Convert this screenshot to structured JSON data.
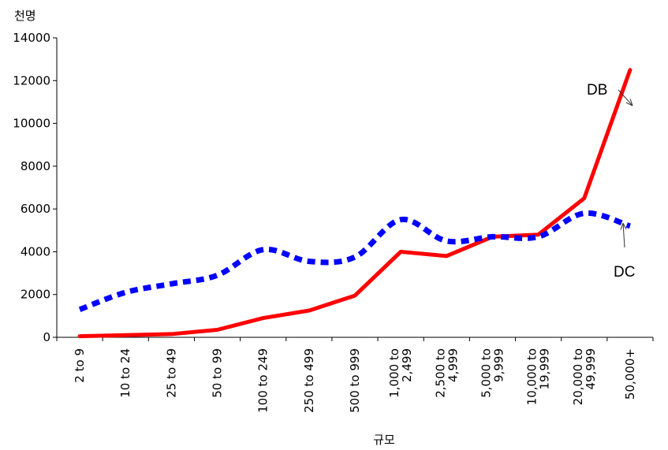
{
  "chart_data": {
    "type": "line",
    "title": "",
    "ylabel": "천명",
    "xlabel": "규모",
    "ylim": [
      0,
      14000
    ],
    "yticks": [
      "0",
      "2000",
      "4000",
      "6000",
      "8000",
      "10000",
      "12000",
      "14000"
    ],
    "grid": false,
    "categories": [
      [
        "2 to 9"
      ],
      [
        "10 to 24"
      ],
      [
        "25 to 49"
      ],
      [
        "50 to 99"
      ],
      [
        "100 to 249"
      ],
      [
        "250 to 499"
      ],
      [
        "500 to 999"
      ],
      [
        "1,000 to",
        "2,499"
      ],
      [
        "2,500 to",
        "4,999"
      ],
      [
        "5,000 to",
        "9,999"
      ],
      [
        "10,000 to",
        "19,999"
      ],
      [
        "20,000 to",
        "49,999"
      ],
      [
        "50,000+"
      ]
    ],
    "series": [
      {
        "name": "DB",
        "style": "solid",
        "color": "#ff0000",
        "values": [
          50,
          100,
          150,
          350,
          900,
          1250,
          1950,
          4000,
          3800,
          4700,
          4800,
          6500,
          12500
        ]
      },
      {
        "name": "DC",
        "style": "dotted",
        "color": "#0000ff",
        "values": [
          1300,
          2100,
          2500,
          2900,
          4100,
          3550,
          3750,
          5500,
          4500,
          4700,
          4700,
          5800,
          5200
        ]
      }
    ],
    "annotations": [
      {
        "text": "DB",
        "series": "DB"
      },
      {
        "text": "DC",
        "series": "DC"
      }
    ]
  }
}
